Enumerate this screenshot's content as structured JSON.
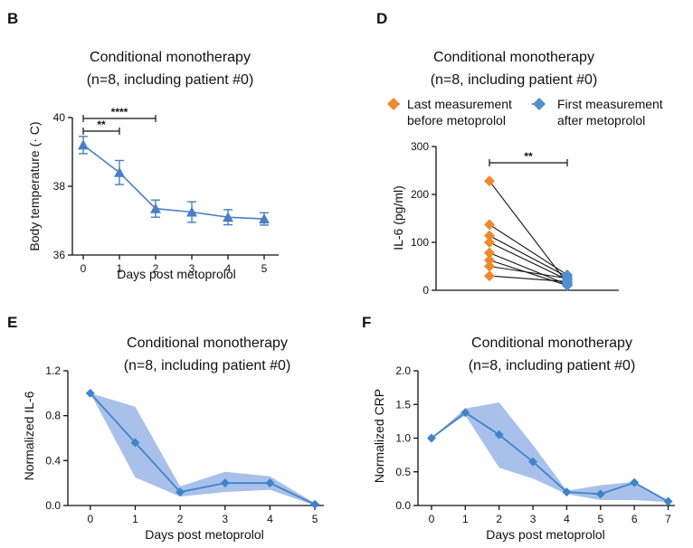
{
  "colors": {
    "blue": "#4a7ec4",
    "blue_line": "#3f84c8",
    "blue_band": "#a9c1ea",
    "orange": "#ef8a2c",
    "diamond_blue": "#4f90cf",
    "pair_line": "#111111"
  },
  "chart_data": [
    {
      "panel": "B",
      "type": "line",
      "title": "Conditional monotherapy",
      "subtitle": "(n=8, including patient #0)",
      "xlabel": "Days post metoprolol",
      "ylabel": "Body temperature (· C)",
      "x": [
        0,
        1,
        2,
        3,
        4,
        5
      ],
      "y": [
        39.2,
        38.4,
        37.35,
        37.25,
        37.1,
        37.05
      ],
      "err": [
        0.25,
        0.35,
        0.25,
        0.3,
        0.22,
        0.18
      ],
      "marker": "triangle",
      "xlim": [
        -0.3,
        5.4
      ],
      "ylim": [
        36,
        40
      ],
      "yticks": [
        36,
        38,
        40
      ],
      "xticks": [
        0,
        1,
        2,
        3,
        4,
        5
      ],
      "significance": [
        {
          "from": 0,
          "to": 1,
          "label": "**"
        },
        {
          "from": 0,
          "to": 2,
          "label": "****"
        }
      ]
    },
    {
      "panel": "D",
      "type": "scatter",
      "title": "Conditional monotherapy",
      "subtitle": "(n=8, including patient #0)",
      "ylabel": "IL-6 (pg/ml)",
      "legend": [
        "Last measurement\nbefore metoprolol",
        "First measurement\nafter metoprolol"
      ],
      "legend_lines": [
        [
          "Last measurement",
          "before metoprolol"
        ],
        [
          "First measurement",
          "after metoprolol"
        ]
      ],
      "groups": [
        "Last measurement before metoprolol",
        "First measurement after metoprolol"
      ],
      "pairs": [
        [
          228,
          15
        ],
        [
          137,
          32
        ],
        [
          114,
          28
        ],
        [
          100,
          22
        ],
        [
          78,
          12
        ],
        [
          63,
          10
        ],
        [
          50,
          25
        ],
        [
          30,
          18
        ]
      ],
      "ylim": [
        0,
        300
      ],
      "yticks": [
        0,
        100,
        200,
        300
      ],
      "significance": [
        {
          "from": 0,
          "to": 1,
          "label": "**"
        }
      ]
    },
    {
      "panel": "E",
      "type": "line",
      "title": "Conditional monotherapy",
      "subtitle": "(n=8, including patient #0)",
      "xlabel": "Days post metoprolol",
      "ylabel": "Normalized IL-6",
      "x": [
        0,
        1,
        2,
        3,
        4,
        5
      ],
      "y": [
        1.0,
        0.56,
        0.12,
        0.2,
        0.2,
        0.01
      ],
      "band_low": [
        1.0,
        0.25,
        0.08,
        0.12,
        0.14,
        0.0
      ],
      "band_high": [
        1.0,
        0.88,
        0.17,
        0.3,
        0.26,
        0.02
      ],
      "marker": "diamond",
      "xlim": [
        -0.5,
        5.2
      ],
      "ylim": [
        0.0,
        1.2
      ],
      "yticks": [
        0.0,
        0.4,
        0.8,
        1.2
      ],
      "ytick_labels": [
        "0.0",
        "0.4",
        "0.8",
        "1.2"
      ],
      "xticks": [
        0,
        1,
        2,
        3,
        4,
        5
      ]
    },
    {
      "panel": "F",
      "type": "line",
      "title": "Conditional monotherapy",
      "subtitle": "(n=8, including patient #0)",
      "xlabel": "Days post metoprolol",
      "ylabel": "Normalized CRP",
      "x": [
        0,
        1,
        2,
        3,
        4,
        5,
        6,
        7
      ],
      "y": [
        1.0,
        1.38,
        1.05,
        0.65,
        0.2,
        0.17,
        0.34,
        0.06
      ],
      "band_low": [
        1.0,
        1.34,
        0.56,
        0.4,
        0.17,
        0.08,
        0.08,
        0.05
      ],
      "band_high": [
        1.0,
        1.44,
        1.53,
        0.9,
        0.22,
        0.3,
        0.35,
        0.07
      ],
      "marker": "diamond",
      "xlim": [
        -0.4,
        7.2
      ],
      "ylim": [
        0.0,
        2.0
      ],
      "yticks": [
        0.0,
        0.5,
        1.0,
        1.5,
        2.0
      ],
      "ytick_labels": [
        "0.0",
        "0.5",
        "1.0",
        "1.5",
        "2.0"
      ],
      "xticks": [
        0,
        1,
        2,
        3,
        4,
        5,
        6,
        7
      ]
    }
  ]
}
